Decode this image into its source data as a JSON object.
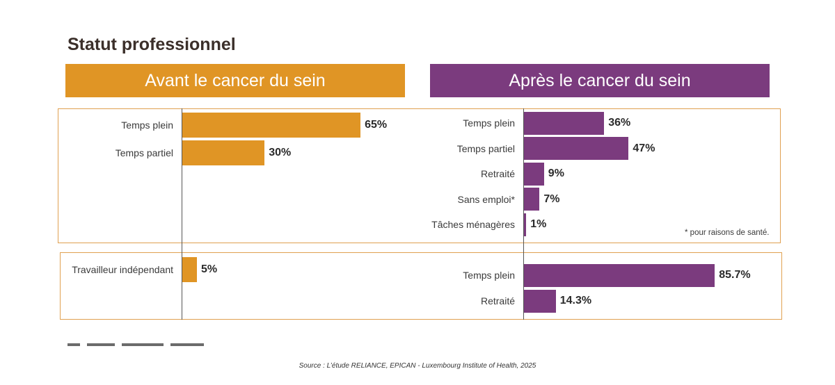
{
  "title": "Statut professionnel",
  "colors": {
    "before": "#e09525",
    "after": "#7b3b7e"
  },
  "headers": {
    "before": "Avant le cancer du sein",
    "after": "Après le cancer du sein"
  },
  "note": "* pour raisons de santé.",
  "source": "Source : L’étude RELIANCE, EPICAN - Luxembourg Institute of Health, 2025",
  "chart_data": [
    {
      "type": "bar",
      "group": "Avant le cancer du sein",
      "categories": [
        "Temps plein",
        "Temps partiel"
      ],
      "values": [
        65,
        30
      ],
      "labels": [
        "65%",
        "30%"
      ]
    },
    {
      "type": "bar",
      "group": "Après le cancer du sein",
      "categories": [
        "Temps plein",
        "Temps partiel",
        "Retraité",
        "Sans emploi*",
        "Tâches ménagères"
      ],
      "values": [
        36,
        47,
        9,
        7,
        1
      ],
      "labels": [
        "36%",
        "47%",
        "9%",
        "7%",
        "1%"
      ]
    },
    {
      "type": "bar",
      "group": "Avant le cancer du sein",
      "categories": [
        "Travailleur indépendant"
      ],
      "values": [
        5
      ],
      "labels": [
        "5%"
      ]
    },
    {
      "type": "bar",
      "group": "Après le cancer du sein",
      "categories": [
        "Temps plein",
        "Retraité"
      ],
      "values": [
        85.7,
        14.3
      ],
      "labels": [
        "85.7%",
        "14.3%"
      ]
    }
  ]
}
